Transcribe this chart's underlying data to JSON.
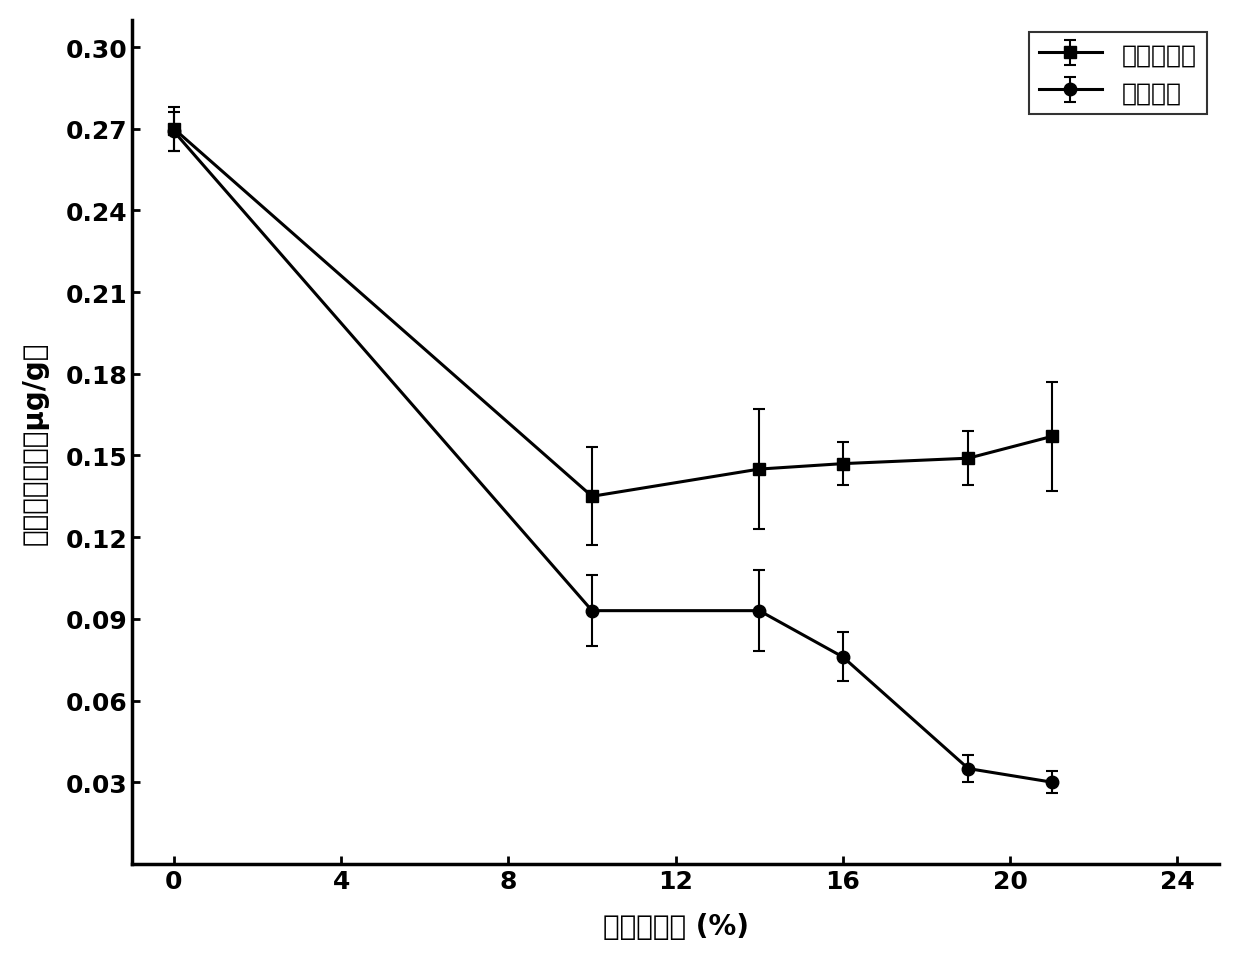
{
  "series1_label": "未接种样品",
  "series2_label": "发酵样品",
  "x": [
    0,
    10,
    14,
    16,
    19,
    21
  ],
  "series1_y": [
    0.27,
    0.135,
    0.145,
    0.147,
    0.149,
    0.157
  ],
  "series1_yerr": [
    0.008,
    0.018,
    0.022,
    0.008,
    0.01,
    0.02
  ],
  "series2_y": [
    0.269,
    0.093,
    0.093,
    0.076,
    0.035,
    0.03
  ],
  "series2_yerr": [
    0.007,
    0.013,
    0.015,
    0.009,
    0.005,
    0.004
  ],
  "xlabel": "样品添加量 (%)",
  "ylabel": "丙烯酰胺含量（μg/g）",
  "xlim": [
    -1,
    25
  ],
  "ylim": [
    0.0,
    0.31
  ],
  "xticks": [
    0,
    4,
    8,
    12,
    16,
    20,
    24
  ],
  "yticks": [
    0.03,
    0.06,
    0.09,
    0.12,
    0.15,
    0.18,
    0.21,
    0.24,
    0.27,
    0.3
  ],
  "line_color": "#000000",
  "marker_size": 9,
  "linewidth": 2.2,
  "capsize": 4,
  "elinewidth": 1.5,
  "legend_fontsize": 18,
  "axis_fontsize": 20,
  "tick_fontsize": 18,
  "background_color": "#ffffff"
}
